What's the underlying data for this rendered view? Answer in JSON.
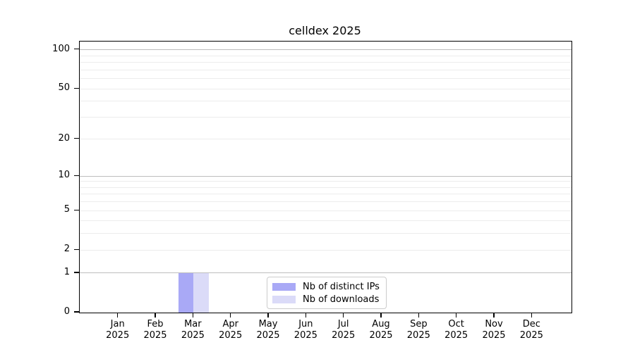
{
  "chart_data": {
    "type": "bar",
    "title": "celldex 2025",
    "categories": [
      "Jan\n2025",
      "Feb\n2025",
      "Mar\n2025",
      "Apr\n2025",
      "May\n2025",
      "Jun\n2025",
      "Jul\n2025",
      "Aug\n2025",
      "Sep\n2025",
      "Oct\n2025",
      "Nov\n2025",
      "Dec\n2025"
    ],
    "series": [
      {
        "name": "Nb of distinct IPs",
        "color": "#a9a9f6",
        "values": [
          0,
          0,
          1,
          0,
          0,
          0,
          0,
          0,
          0,
          0,
          0,
          0
        ]
      },
      {
        "name": "Nb of downloads",
        "color": "#dbdbf8",
        "values": [
          0,
          0,
          1,
          0,
          0,
          0,
          0,
          0,
          0,
          0,
          0,
          0
        ]
      }
    ],
    "xlabel": "",
    "ylabel": "",
    "yscale": "log1p",
    "ylim": [
      0,
      116
    ],
    "y_ticks": [
      0,
      1,
      2,
      5,
      10,
      20,
      50,
      100
    ],
    "y_major_gridlines": [
      1,
      10,
      100
    ],
    "y_minor_gridlines": [
      2,
      3,
      4,
      5,
      6,
      7,
      8,
      9,
      20,
      30,
      40,
      50,
      60,
      70,
      80,
      90
    ],
    "grid": "horizontal",
    "legend_position": "bottom-center"
  },
  "colors": {
    "background": "#ffffff",
    "spine": "#000000",
    "major_grid": "#bdbdbd",
    "minor_grid": "#ececec",
    "text": "#000000",
    "legend_border": "#cccccc"
  }
}
